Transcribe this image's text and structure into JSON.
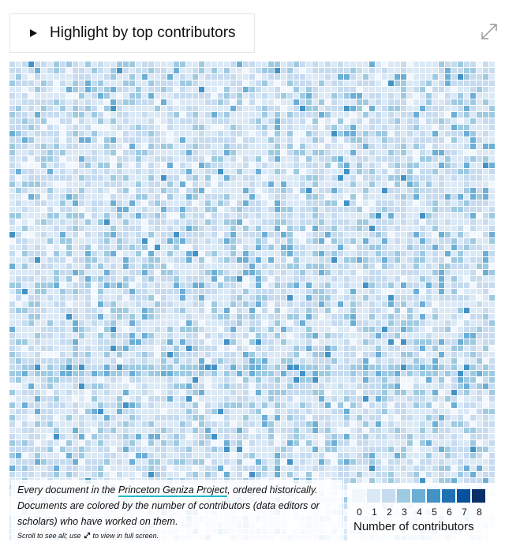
{
  "toggle": {
    "label": "Highlight by top contributors"
  },
  "caption": {
    "line_prefix": "Every document in the ",
    "link_text": "Princeton Geniza Project",
    "line_suffix": ", ordered historically. Documents are colored by the number of contributors (data editors or scholars) who have worked on them.",
    "hint_prefix": "Scroll to see all; use ",
    "hint_suffix": " to view in full screen."
  },
  "chart_data": {
    "type": "heatmap",
    "title": "",
    "legend": {
      "title": "Number of contributors",
      "values": [
        "0",
        "1",
        "2",
        "3",
        "4",
        "5",
        "6",
        "7",
        "8"
      ],
      "colors": [
        "#f2f7fd",
        "#dbe9f6",
        "#c6dbef",
        "#9ecae1",
        "#6baed6",
        "#4292c6",
        "#2171b5",
        "#08519c",
        "#08306b"
      ]
    },
    "columns": 77,
    "rows": 76,
    "dense_band_rows": [
      48,
      49
    ]
  },
  "icons": {
    "expand": "expand-diagonal-icon",
    "toggle": "triangle-right-icon"
  }
}
